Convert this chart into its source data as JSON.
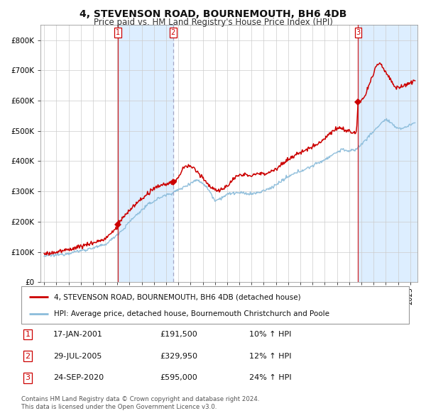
{
  "title": "4, STEVENSON ROAD, BOURNEMOUTH, BH6 4DB",
  "subtitle": "Price paid vs. HM Land Registry's House Price Index (HPI)",
  "title_fontsize": 10,
  "subtitle_fontsize": 8.5,
  "background_color": "#ffffff",
  "plot_bg_color": "#ffffff",
  "ylim": [
    0,
    850000
  ],
  "yticks": [
    0,
    100000,
    200000,
    300000,
    400000,
    500000,
    600000,
    700000,
    800000
  ],
  "ytick_labels": [
    "£0",
    "£100K",
    "£200K",
    "£300K",
    "£400K",
    "£500K",
    "£600K",
    "£700K",
    "£800K"
  ],
  "x_start_year": 1995,
  "x_end_year": 2025,
  "sale_years_float": [
    2001.046,
    2005.572,
    2020.731
  ],
  "sale_prices": [
    191500,
    329950,
    595000
  ],
  "sale_labels": [
    "1",
    "2",
    "3"
  ],
  "legend_line1": "4, STEVENSON ROAD, BOURNEMOUTH, BH6 4DB (detached house)",
  "legend_line2": "HPI: Average price, detached house, Bournemouth Christchurch and Poole",
  "table_rows": [
    {
      "label": "1",
      "date": "17-JAN-2001",
      "price": "£191,500",
      "hpi": "10% ↑ HPI"
    },
    {
      "label": "2",
      "date": "29-JUL-2005",
      "price": "£329,950",
      "hpi": "12% ↑ HPI"
    },
    {
      "label": "3",
      "date": "24-SEP-2020",
      "price": "£595,000",
      "hpi": "24% ↑ HPI"
    }
  ],
  "footnote1": "Contains HM Land Registry data © Crown copyright and database right 2024.",
  "footnote2": "This data is licensed under the Open Government Licence v3.0.",
  "shaded_regions": [
    {
      "start": 2001.046,
      "end": 2005.572
    },
    {
      "start": 2020.731,
      "end": 2025.6
    }
  ],
  "red_line_color": "#cc0000",
  "blue_line_color": "#8bbcda",
  "shade_color": "#ddeeff",
  "vline1_color": "#cc0000",
  "vline1_style": "solid",
  "vline2_color": "#9999bb",
  "vline2_style": "dashed",
  "vline3_color": "#cc0000",
  "vline3_style": "solid",
  "marker_color": "#cc0000",
  "grid_color": "#cccccc",
  "xlim_left": 1994.7,
  "xlim_right": 2025.6
}
